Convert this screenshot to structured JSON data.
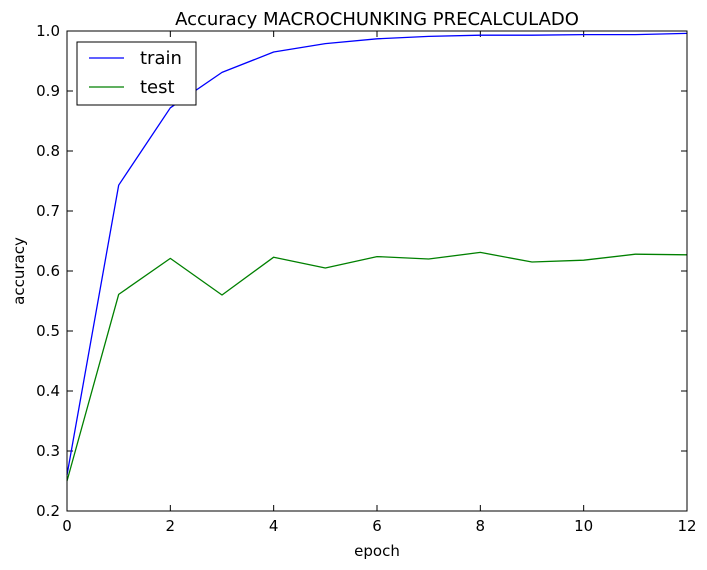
{
  "chart_data": {
    "type": "line",
    "title": "Accuracy MACROCHUNKING PRECALCULADO",
    "xlabel": "epoch",
    "ylabel": "accuracy",
    "xlim": [
      0,
      12
    ],
    "ylim": [
      0.2,
      1.0
    ],
    "x_ticks": [
      0,
      2,
      4,
      6,
      8,
      10,
      12
    ],
    "y_ticks": [
      0.2,
      0.3,
      0.4,
      0.5,
      0.6,
      0.7,
      0.8,
      0.9,
      1.0
    ],
    "x_tick_labels": [
      "0",
      "2",
      "4",
      "6",
      "8",
      "10",
      "12"
    ],
    "y_tick_labels": [
      "0.2",
      "0.3",
      "0.4",
      "0.5",
      "0.6",
      "0.7",
      "0.8",
      "0.9",
      "1.0"
    ],
    "grid": false,
    "legend_position": "upper-left",
    "x": [
      0,
      1,
      2,
      3,
      4,
      5,
      6,
      7,
      8,
      9,
      10,
      11,
      12
    ],
    "series": [
      {
        "name": "train",
        "color": "#0000ff",
        "values": [
          0.26,
          0.743,
          0.872,
          0.931,
          0.965,
          0.979,
          0.987,
          0.991,
          0.993,
          0.993,
          0.994,
          0.994,
          0.996
        ]
      },
      {
        "name": "test",
        "color": "#008000",
        "values": [
          0.25,
          0.561,
          0.621,
          0.56,
          0.623,
          0.605,
          0.624,
          0.62,
          0.631,
          0.615,
          0.618,
          0.628,
          0.627
        ]
      }
    ]
  }
}
